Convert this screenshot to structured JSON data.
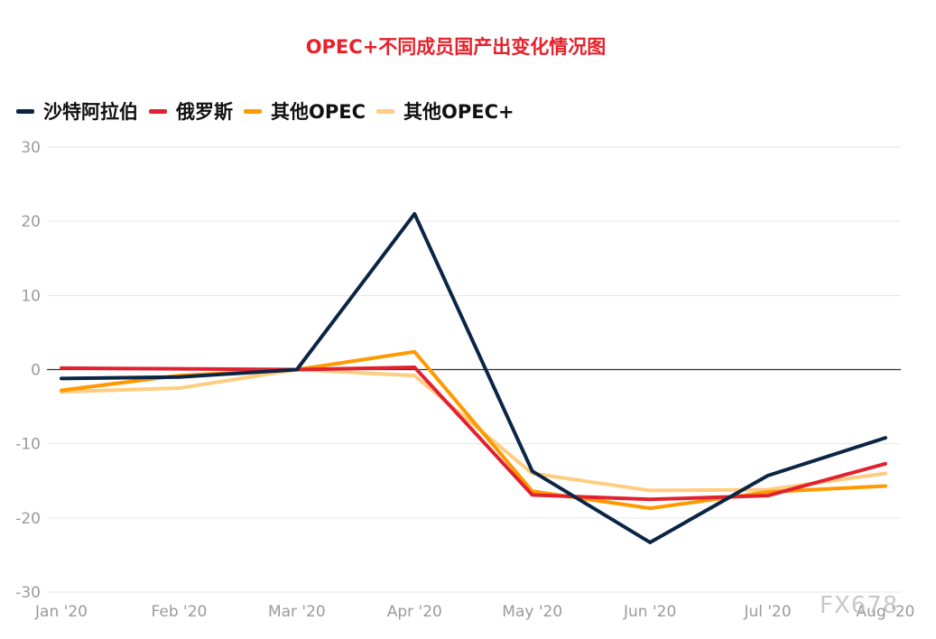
{
  "title": "OPEC+不同成员国产出变化情况图",
  "watermark": "FX678",
  "chart_data": {
    "type": "line",
    "title": "OPEC+不同成员国产出变化情况图",
    "categories": [
      "Jan '20",
      "Feb '20",
      "Mar '20",
      "Apr '20",
      "May '20",
      "Jun '20",
      "Jul '20",
      "Aug '20"
    ],
    "ylim": [
      -30,
      30
    ],
    "yticks": [
      30,
      20,
      10,
      0,
      -10,
      -20,
      -30
    ],
    "grid": true,
    "legend_position": "top-left",
    "series": [
      {
        "name": "沙特阿拉伯",
        "color": "#0b2545",
        "values": [
          -1.2,
          -1.0,
          0,
          21.0,
          -13.7,
          -23.3,
          -14.3,
          -9.2
        ]
      },
      {
        "name": "俄罗斯",
        "color": "#e02230",
        "values": [
          0.2,
          0.1,
          0,
          0.3,
          -16.9,
          -17.5,
          -17.0,
          -12.7
        ]
      },
      {
        "name": "其他OPEC",
        "color": "#ff9900",
        "values": [
          -2.8,
          -0.8,
          0,
          2.4,
          -16.4,
          -18.7,
          -16.5,
          -15.7
        ]
      },
      {
        "name": "其他OPEC+",
        "color": "#ffcc80",
        "values": [
          -3.0,
          -2.5,
          0,
          -0.8,
          -14.0,
          -16.3,
          -16.2,
          -14.0
        ]
      }
    ]
  }
}
